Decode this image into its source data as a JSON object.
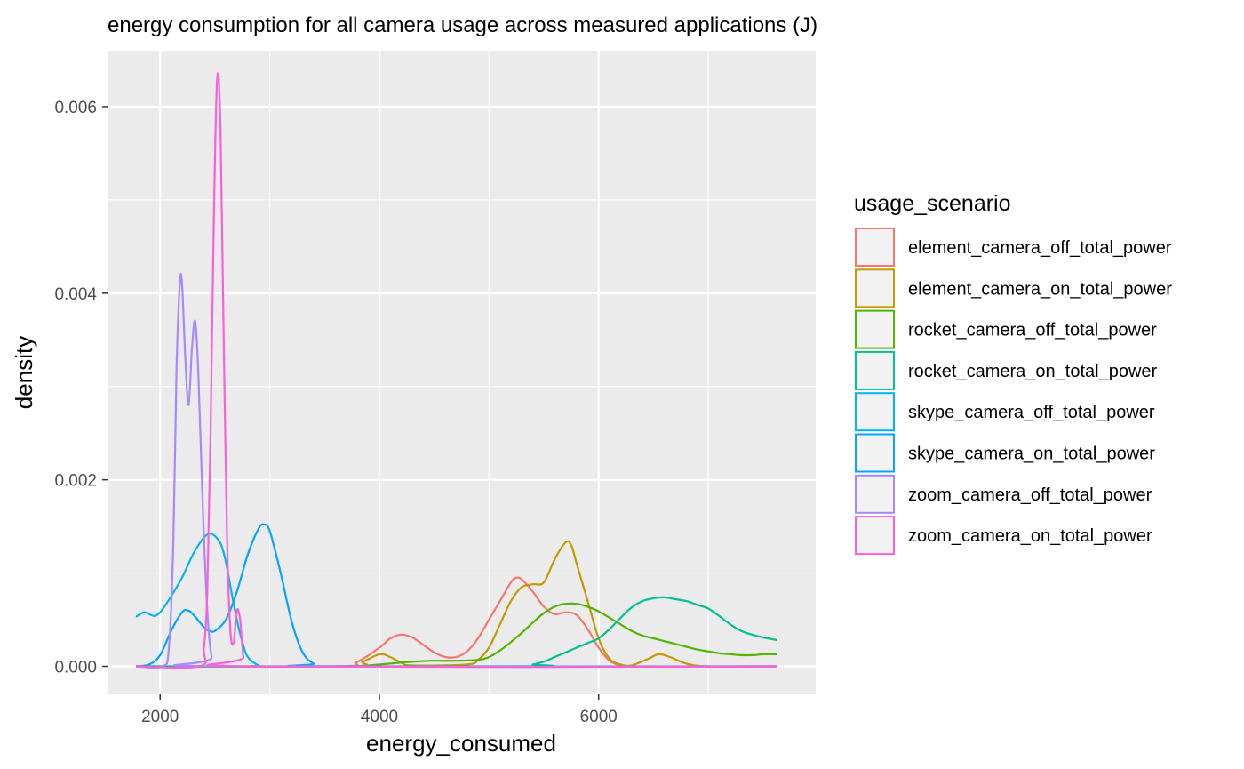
{
  "chart_data": {
    "type": "line",
    "title": "energy consumption for all camera usage across measured applications (J)",
    "xlabel": "energy_consumed",
    "ylabel": "density",
    "xlim": [
      1520,
      7980
    ],
    "ylim": [
      -0.0003,
      0.0066
    ],
    "x_ticks": [
      2000,
      4000,
      6000
    ],
    "x_tick_labels": [
      "2000",
      "4000",
      "6000"
    ],
    "y_ticks": [
      0.0,
      0.002,
      0.004,
      0.006
    ],
    "y_tick_labels": [
      "0.000",
      "0.002",
      "0.004",
      "0.006"
    ],
    "x_minor_ticks": [
      3000,
      5000,
      7000
    ],
    "y_minor_ticks": [
      0.001,
      0.003,
      0.005
    ],
    "grid": true,
    "panel_background": "#ebebeb",
    "legend": {
      "title": "usage_scenario",
      "position": "right"
    },
    "series": [
      {
        "name": "element_camera_off_total_power",
        "color": "#F8766D",
        "points": [
          [
            1780,
            0
          ],
          [
            3600,
            0
          ],
          [
            3800,
            5e-05
          ],
          [
            4000,
            0.0002
          ],
          [
            4100,
            0.0003
          ],
          [
            4200,
            0.00034
          ],
          [
            4300,
            0.00031
          ],
          [
            4400,
            0.00023
          ],
          [
            4500,
            0.00015
          ],
          [
            4600,
            0.0001
          ],
          [
            4700,
            0.0001
          ],
          [
            4800,
            0.00016
          ],
          [
            4900,
            0.0003
          ],
          [
            5000,
            0.0005
          ],
          [
            5100,
            0.0007
          ],
          [
            5200,
            0.0009
          ],
          [
            5250,
            0.00095
          ],
          [
            5300,
            0.00093
          ],
          [
            5400,
            0.0008
          ],
          [
            5500,
            0.00064
          ],
          [
            5600,
            0.00056
          ],
          [
            5700,
            0.00058
          ],
          [
            5800,
            0.00055
          ],
          [
            5900,
            0.0004
          ],
          [
            6000,
            0.0002
          ],
          [
            6100,
            6e-05
          ],
          [
            6200,
            1e-05
          ],
          [
            6300,
            0
          ],
          [
            7630,
            0
          ]
        ]
      },
      {
        "name": "element_camera_on_total_power",
        "color": "#C49A00",
        "points": [
          [
            1780,
            0
          ],
          [
            3700,
            0
          ],
          [
            3850,
            5e-05
          ],
          [
            4000,
            0.00013
          ],
          [
            4100,
            0.0001
          ],
          [
            4200,
            4e-05
          ],
          [
            4300,
            1e-05
          ],
          [
            4800,
            2e-05
          ],
          [
            4900,
            7e-05
          ],
          [
            5000,
            0.0002
          ],
          [
            5100,
            0.00045
          ],
          [
            5200,
            0.0007
          ],
          [
            5300,
            0.00085
          ],
          [
            5400,
            0.00088
          ],
          [
            5500,
            0.0009
          ],
          [
            5600,
            0.00115
          ],
          [
            5700,
            0.00133
          ],
          [
            5750,
            0.0013
          ],
          [
            5800,
            0.0011
          ],
          [
            5900,
            0.0007
          ],
          [
            6000,
            0.0003
          ],
          [
            6100,
            8e-05
          ],
          [
            6200,
            2e-05
          ],
          [
            6300,
            1e-05
          ],
          [
            6450,
            8e-05
          ],
          [
            6550,
            0.00013
          ],
          [
            6650,
            0.0001
          ],
          [
            6800,
            3e-05
          ],
          [
            7000,
            0
          ],
          [
            7630,
            0
          ]
        ]
      },
      {
        "name": "rocket_camera_off_total_power",
        "color": "#53B400",
        "points": [
          [
            1780,
            0
          ],
          [
            3800,
            0
          ],
          [
            3900,
            1e-05
          ],
          [
            4100,
            3e-05
          ],
          [
            4300,
            5e-05
          ],
          [
            4500,
            6e-05
          ],
          [
            4700,
            6e-05
          ],
          [
            4900,
            7e-05
          ],
          [
            5000,
            0.0001
          ],
          [
            5100,
            0.00017
          ],
          [
            5200,
            0.00026
          ],
          [
            5300,
            0.00036
          ],
          [
            5400,
            0.00047
          ],
          [
            5500,
            0.00057
          ],
          [
            5600,
            0.00064
          ],
          [
            5700,
            0.00067
          ],
          [
            5800,
            0.00067
          ],
          [
            5900,
            0.00064
          ],
          [
            6000,
            0.00059
          ],
          [
            6100,
            0.00052
          ],
          [
            6200,
            0.00045
          ],
          [
            6300,
            0.00038
          ],
          [
            6400,
            0.00033
          ],
          [
            6500,
            0.0003
          ],
          [
            6600,
            0.00027
          ],
          [
            6700,
            0.00024
          ],
          [
            6800,
            0.00021
          ],
          [
            6900,
            0.00018
          ],
          [
            7000,
            0.00016
          ],
          [
            7100,
            0.00014
          ],
          [
            7200,
            0.00013
          ],
          [
            7300,
            0.00012
          ],
          [
            7400,
            0.00012
          ],
          [
            7500,
            0.00013
          ],
          [
            7630,
            0.00013
          ]
        ]
      },
      {
        "name": "rocket_camera_on_total_power",
        "color": "#00C094",
        "points": [
          [
            1780,
            0
          ],
          [
            5300,
            0
          ],
          [
            5400,
            2e-05
          ],
          [
            5500,
            5e-05
          ],
          [
            5600,
            0.0001
          ],
          [
            5700,
            0.00015
          ],
          [
            5800,
            0.0002
          ],
          [
            5900,
            0.00025
          ],
          [
            6000,
            0.0003
          ],
          [
            6100,
            0.0004
          ],
          [
            6200,
            0.00052
          ],
          [
            6300,
            0.00063
          ],
          [
            6400,
            0.0007
          ],
          [
            6500,
            0.00073
          ],
          [
            6600,
            0.00074
          ],
          [
            6700,
            0.00072
          ],
          [
            6800,
            0.0007
          ],
          [
            6900,
            0.00066
          ],
          [
            7000,
            0.00062
          ],
          [
            7100,
            0.00054
          ],
          [
            7200,
            0.00045
          ],
          [
            7300,
            0.00038
          ],
          [
            7400,
            0.00034
          ],
          [
            7500,
            0.00031
          ],
          [
            7630,
            0.00028
          ]
        ]
      },
      {
        "name": "skype_camera_off_total_power",
        "color": "#00B6EB",
        "points": [
          [
            1780,
            0.00053
          ],
          [
            1850,
            0.00058
          ],
          [
            1900,
            0.00056
          ],
          [
            1950,
            0.00054
          ],
          [
            2000,
            0.00058
          ],
          [
            2050,
            0.00066
          ],
          [
            2100,
            0.00075
          ],
          [
            2200,
            0.00095
          ],
          [
            2300,
            0.0012
          ],
          [
            2400,
            0.00138
          ],
          [
            2470,
            0.00142
          ],
          [
            2550,
            0.00132
          ],
          [
            2600,
            0.00112
          ],
          [
            2650,
            0.0008
          ],
          [
            2700,
            0.0005
          ],
          [
            2750,
            0.00026
          ],
          [
            2800,
            0.0001
          ],
          [
            2900,
            1e-05
          ],
          [
            3000,
            0
          ],
          [
            7630,
            0
          ]
        ]
      },
      {
        "name": "skype_camera_on_total_power",
        "color": "#06A4FF",
        "points": [
          [
            1780,
            0
          ],
          [
            1900,
            2e-05
          ],
          [
            2000,
            0.00012
          ],
          [
            2100,
            0.00038
          ],
          [
            2200,
            0.00058
          ],
          [
            2250,
            0.0006
          ],
          [
            2300,
            0.00056
          ],
          [
            2400,
            0.00042
          ],
          [
            2450,
            0.00038
          ],
          [
            2500,
            0.00038
          ],
          [
            2600,
            0.0005
          ],
          [
            2700,
            0.0008
          ],
          [
            2800,
            0.0012
          ],
          [
            2900,
            0.00148
          ],
          [
            2950,
            0.00152
          ],
          [
            3000,
            0.00145
          ],
          [
            3100,
            0.001
          ],
          [
            3200,
            0.00048
          ],
          [
            3300,
            0.00015
          ],
          [
            3400,
            3e-05
          ],
          [
            3500,
            0
          ],
          [
            7630,
            0
          ]
        ]
      },
      {
        "name": "zoom_camera_off_total_power",
        "color": "#A58AFF",
        "points": [
          [
            1780,
            0
          ],
          [
            2020,
            0
          ],
          [
            2080,
            0.0002
          ],
          [
            2120,
            0.0013
          ],
          [
            2150,
            0.0032
          ],
          [
            2180,
            0.0041
          ],
          [
            2200,
            0.0041
          ],
          [
            2230,
            0.0033
          ],
          [
            2260,
            0.0028
          ],
          [
            2290,
            0.0034
          ],
          [
            2320,
            0.0037
          ],
          [
            2350,
            0.0031
          ],
          [
            2390,
            0.0017
          ],
          [
            2430,
            0.0006
          ],
          [
            2470,
            0.0001
          ],
          [
            2520,
            0
          ],
          [
            7630,
            0
          ]
        ]
      },
      {
        "name": "zoom_camera_on_total_power",
        "color": "#FB61D7",
        "points": [
          [
            1780,
            0
          ],
          [
            2360,
            0
          ],
          [
            2400,
            0.0002
          ],
          [
            2430,
            0.0008
          ],
          [
            2460,
            0.0025
          ],
          [
            2490,
            0.0048
          ],
          [
            2520,
            0.0063
          ],
          [
            2550,
            0.0058
          ],
          [
            2580,
            0.0035
          ],
          [
            2610,
            0.0014
          ],
          [
            2640,
            0.0004
          ],
          [
            2670,
            0.00025
          ],
          [
            2700,
            0.0006
          ],
          [
            2730,
            0.0005
          ],
          [
            2760,
            0.0001
          ],
          [
            2800,
            0
          ],
          [
            7630,
            0
          ]
        ]
      }
    ]
  }
}
